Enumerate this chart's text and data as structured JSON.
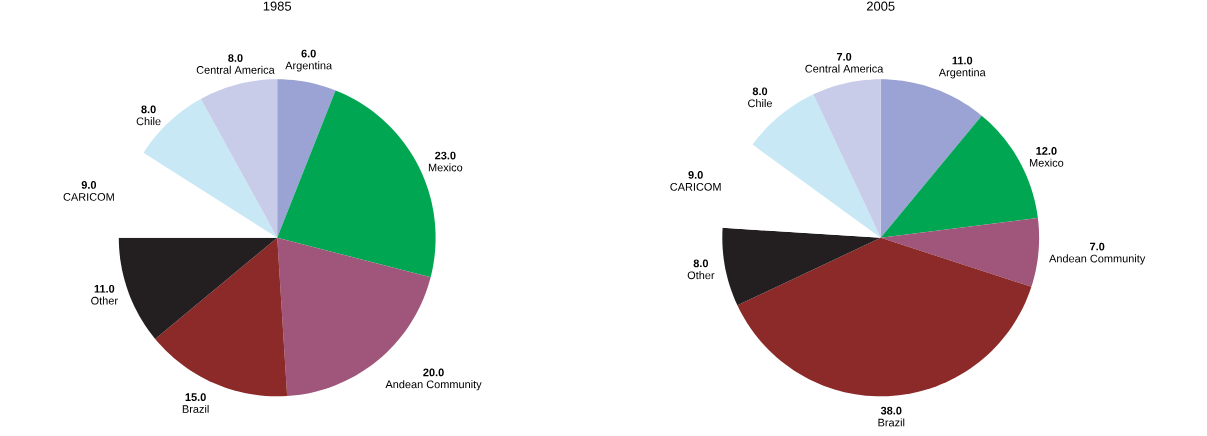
{
  "chart_data": [
    {
      "type": "pie",
      "title": "1985",
      "categories": [
        "Argentina",
        "Mexico",
        "Andean Community",
        "Brazil",
        "Other",
        "CARICOM",
        "Chile",
        "Central America"
      ],
      "values": [
        6,
        23,
        20,
        15,
        11,
        9,
        8,
        8
      ],
      "value_labels": [
        "6.0",
        "23.0",
        "20.0",
        "15.0",
        "11.0",
        "9.0",
        "8.0",
        "8.0"
      ],
      "colors": [
        "#9aa3d4",
        "#00a651",
        "#a0557a",
        "#8b2a28",
        "#231f20",
        "#ffffff",
        "#c8e8f5",
        "#c8cce8"
      ]
    },
    {
      "type": "pie",
      "title": "2005",
      "categories": [
        "Argentina",
        "Mexico",
        "Andean Community",
        "Brazil",
        "Other",
        "CARICOM",
        "Chile",
        "Central America"
      ],
      "values": [
        11,
        12,
        7,
        38,
        8,
        9,
        8,
        7
      ],
      "value_labels": [
        "11.0",
        "12.0",
        "7.0",
        "38.0",
        "8.0",
        "9.0",
        "8.0",
        "7.0"
      ],
      "colors": [
        "#9aa3d4",
        "#00a651",
        "#a0557a",
        "#8b2a28",
        "#231f20",
        "#ffffff",
        "#c8e8f5",
        "#c8cce8"
      ]
    }
  ]
}
